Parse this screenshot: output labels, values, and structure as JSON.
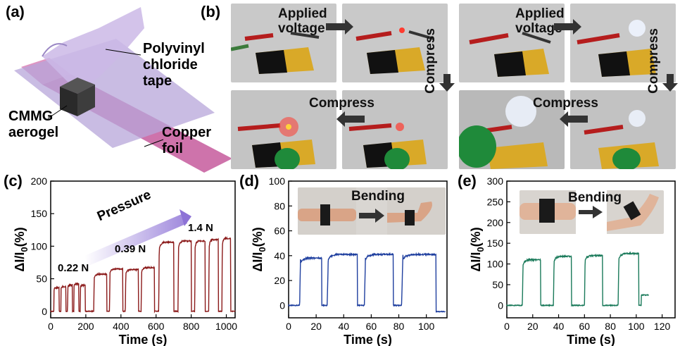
{
  "panels": {
    "a": {
      "label": "(a)",
      "callouts": {
        "tape": "Polyvinyl\nchloride\ntape",
        "aerogel": "CMMG\naerogel",
        "foil": "Copper\nfoil"
      }
    },
    "b": {
      "label": "(b)",
      "applied_voltage": "Applied\nvoltage",
      "compress": "Compress",
      "colors": {
        "red_led": "#ff3b2f",
        "white_led": "#eef4ff"
      }
    },
    "c": {
      "label": "(c)",
      "pressure_label": "Pressure",
      "force_labels": [
        "0.22 N",
        "0.39 N",
        "1.4 N"
      ]
    },
    "d": {
      "label": "(d)",
      "bending_label": "Bending"
    },
    "e": {
      "label": "(e)",
      "bending_label": "Bending"
    }
  },
  "chart_data": [
    {
      "id": "c",
      "type": "line",
      "xlabel": "Time (s)",
      "ylabel": "ΔI/I0(%)",
      "xlim": [
        0,
        1050
      ],
      "ylim": [
        -10,
        200
      ],
      "xticks": [
        0,
        200,
        400,
        600,
        800,
        1000
      ],
      "yticks": [
        0,
        50,
        100,
        150,
        200
      ],
      "color": "#8b1a1a",
      "pulses": [
        {
          "start": 18,
          "end": 48,
          "level": 36
        },
        {
          "start": 58,
          "end": 86,
          "level": 38
        },
        {
          "start": 96,
          "end": 124,
          "level": 40
        },
        {
          "start": 132,
          "end": 160,
          "level": 42
        },
        {
          "start": 168,
          "end": 196,
          "level": 40
        },
        {
          "start": 245,
          "end": 320,
          "level": 57
        },
        {
          "start": 335,
          "end": 410,
          "level": 65
        },
        {
          "start": 425,
          "end": 500,
          "level": 64
        },
        {
          "start": 515,
          "end": 590,
          "level": 67
        },
        {
          "start": 615,
          "end": 700,
          "level": 106
        },
        {
          "start": 725,
          "end": 800,
          "level": 108
        },
        {
          "start": 820,
          "end": 880,
          "level": 108
        },
        {
          "start": 900,
          "end": 955,
          "level": 110
        },
        {
          "start": 975,
          "end": 1025,
          "level": 112
        }
      ]
    },
    {
      "id": "d",
      "type": "line",
      "xlabel": "Time (s)",
      "ylabel": "ΔI/I0(%)",
      "xlim": [
        0,
        115
      ],
      "ylim": [
        -10,
        100
      ],
      "xticks": [
        0,
        20,
        40,
        60,
        80,
        100
      ],
      "yticks": [
        0,
        20,
        40,
        60,
        80,
        100
      ],
      "color": "#1f3f9f",
      "pulses": [
        {
          "start": 8,
          "end": 24,
          "level": 38
        },
        {
          "start": 28,
          "end": 50,
          "level": 41
        },
        {
          "start": 55,
          "end": 76,
          "level": 41
        },
        {
          "start": 82,
          "end": 107,
          "level": 41
        }
      ],
      "final_drop": -5
    },
    {
      "id": "e",
      "type": "line",
      "xlabel": "Time (s)",
      "ylabel": "ΔI/I0(%)",
      "xlim": [
        0,
        130
      ],
      "ylim": [
        -30,
        300
      ],
      "xticks": [
        0,
        20,
        40,
        60,
        80,
        100,
        120
      ],
      "yticks": [
        0,
        50,
        100,
        150,
        200,
        250,
        300
      ],
      "color": "#1a7a5a",
      "pulses": [
        {
          "start": 12,
          "end": 26,
          "level": 110
        },
        {
          "start": 36,
          "end": 50,
          "level": 118
        },
        {
          "start": 60,
          "end": 74,
          "level": 120
        },
        {
          "start": 86,
          "end": 102,
          "level": 125
        }
      ],
      "final_level": 25
    }
  ]
}
